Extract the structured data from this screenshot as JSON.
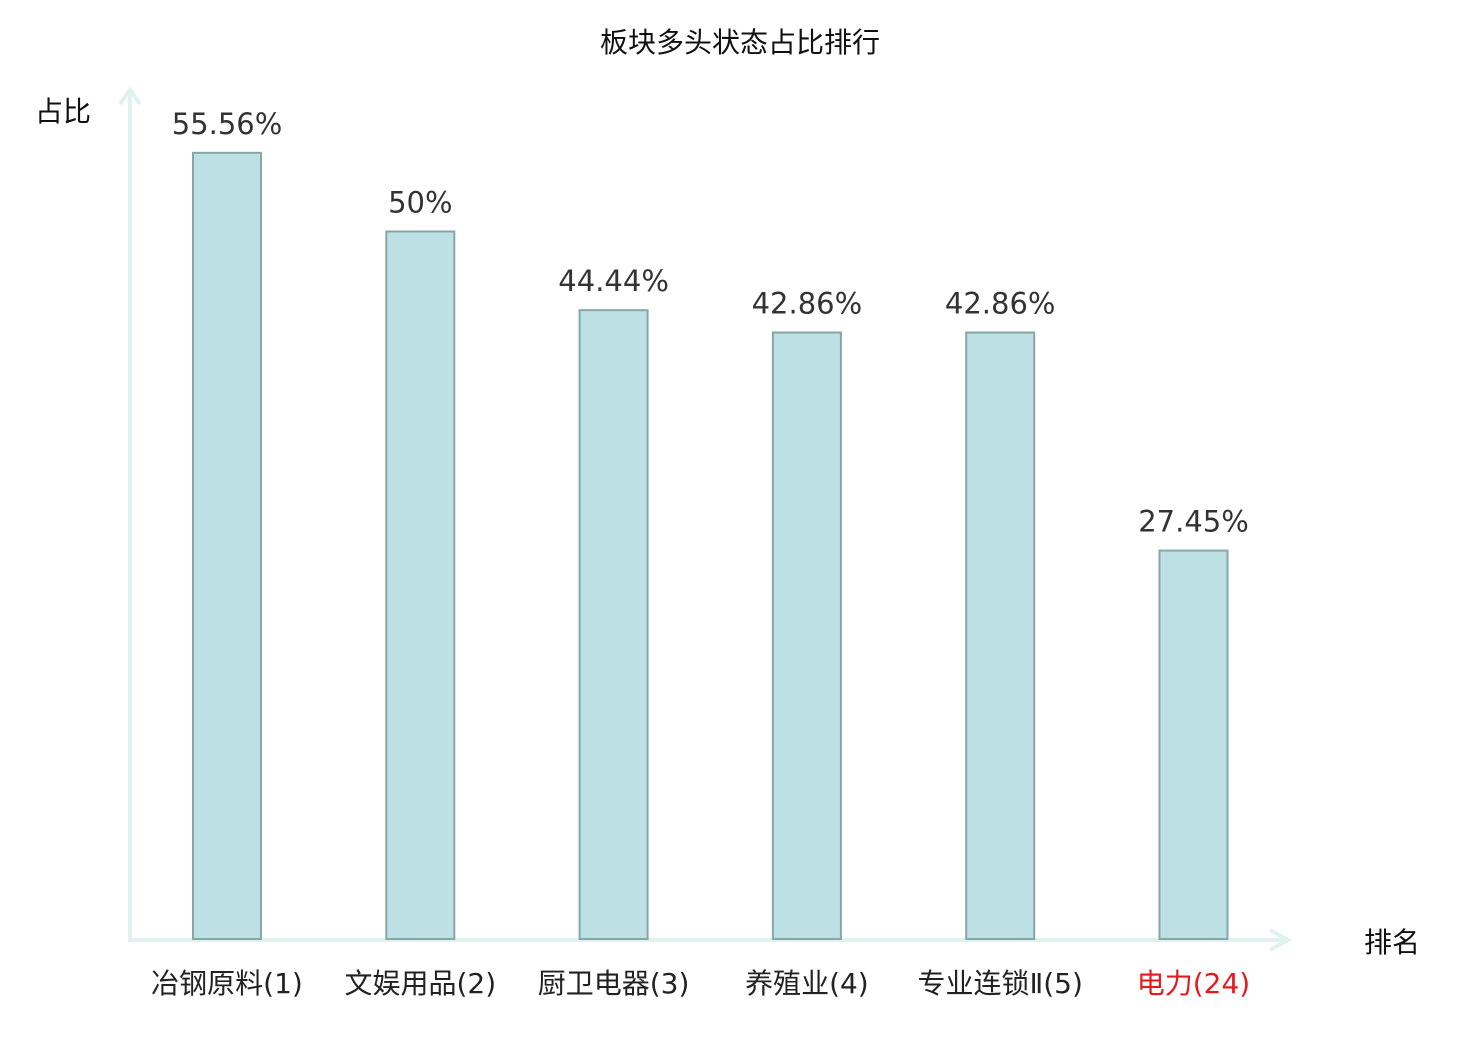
{
  "chart_data": {
    "type": "bar",
    "title": "板块多头状态占比排行",
    "xlabel": "排名",
    "ylabel": "占比",
    "categories": [
      "冶钢原料(1)",
      "文娱用品(2)",
      "厨卫电器(3)",
      "养殖业(4)",
      "专业连锁Ⅱ(5)",
      "电力(24)"
    ],
    "values": [
      55.56,
      50,
      44.44,
      42.86,
      42.86,
      27.45
    ],
    "value_labels": [
      "55.56%",
      "50%",
      "44.44%",
      "42.86%",
      "42.86%",
      "27.45%"
    ],
    "highlight_index": 5,
    "ylim": [
      0,
      60
    ],
    "grid": false,
    "colors": {
      "bar_fill": "#bce0e3",
      "bar_stroke": "#88a6a8",
      "axis": "#dff2ef",
      "highlight": "#e8191c",
      "text": "#222222",
      "value_text": "#333333"
    }
  }
}
